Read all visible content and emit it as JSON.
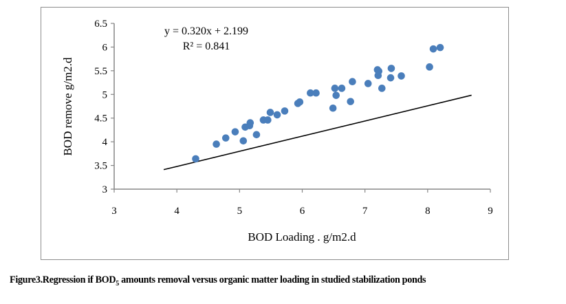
{
  "chart_data": {
    "type": "scatter",
    "title": "",
    "xlabel": "BOD Loading . g/m2.d",
    "ylabel": "BOD remove g/m2.d",
    "xlim": [
      3,
      9
    ],
    "ylim": [
      3,
      6.5
    ],
    "x_ticks": [
      "3",
      "4",
      "5",
      "6",
      "7",
      "8",
      "9"
    ],
    "y_ticks": [
      "3",
      "3.5",
      "4",
      "4.5",
      "5",
      "5.5",
      "6",
      "6.5"
    ],
    "grid": false,
    "legend": "none",
    "marker_color": "#4a7ebb",
    "series": [
      {
        "name": "BOD removal",
        "points": [
          [
            4.3,
            3.64
          ],
          [
            4.63,
            3.95
          ],
          [
            4.78,
            4.08
          ],
          [
            4.93,
            4.21
          ],
          [
            5.06,
            4.02
          ],
          [
            5.09,
            4.31
          ],
          [
            5.16,
            4.34
          ],
          [
            5.17,
            4.4
          ],
          [
            5.27,
            4.15
          ],
          [
            5.38,
            4.46
          ],
          [
            5.45,
            4.46
          ],
          [
            5.49,
            4.62
          ],
          [
            5.6,
            4.57
          ],
          [
            5.72,
            4.65
          ],
          [
            5.93,
            4.81
          ],
          [
            5.96,
            4.84
          ],
          [
            6.13,
            5.03
          ],
          [
            6.22,
            5.03
          ],
          [
            6.49,
            4.71
          ],
          [
            6.52,
            5.13
          ],
          [
            6.54,
            4.98
          ],
          [
            6.63,
            5.13
          ],
          [
            6.77,
            4.85
          ],
          [
            6.8,
            5.27
          ],
          [
            7.05,
            5.23
          ],
          [
            7.2,
            5.52
          ],
          [
            7.21,
            5.4
          ],
          [
            7.22,
            5.49
          ],
          [
            7.27,
            5.13
          ],
          [
            7.41,
            5.35
          ],
          [
            7.42,
            5.55
          ],
          [
            7.58,
            5.39
          ],
          [
            8.03,
            5.58
          ],
          [
            8.09,
            5.96
          ],
          [
            8.2,
            5.99
          ]
        ]
      }
    ],
    "trendline": {
      "type": "linear",
      "slope": 0.32,
      "intercept": 2.199,
      "x_range": [
        3.79,
        8.7
      ],
      "color": "#000000",
      "equation_label": "y = 0.320x + 2.199",
      "r2_label": "R² = 0.841"
    }
  },
  "caption": {
    "prefix": "Figure3.Regression if BOD",
    "subscript": "5",
    "suffix": " amounts removal versus organic matter loading in studied stabilization ponds"
  }
}
